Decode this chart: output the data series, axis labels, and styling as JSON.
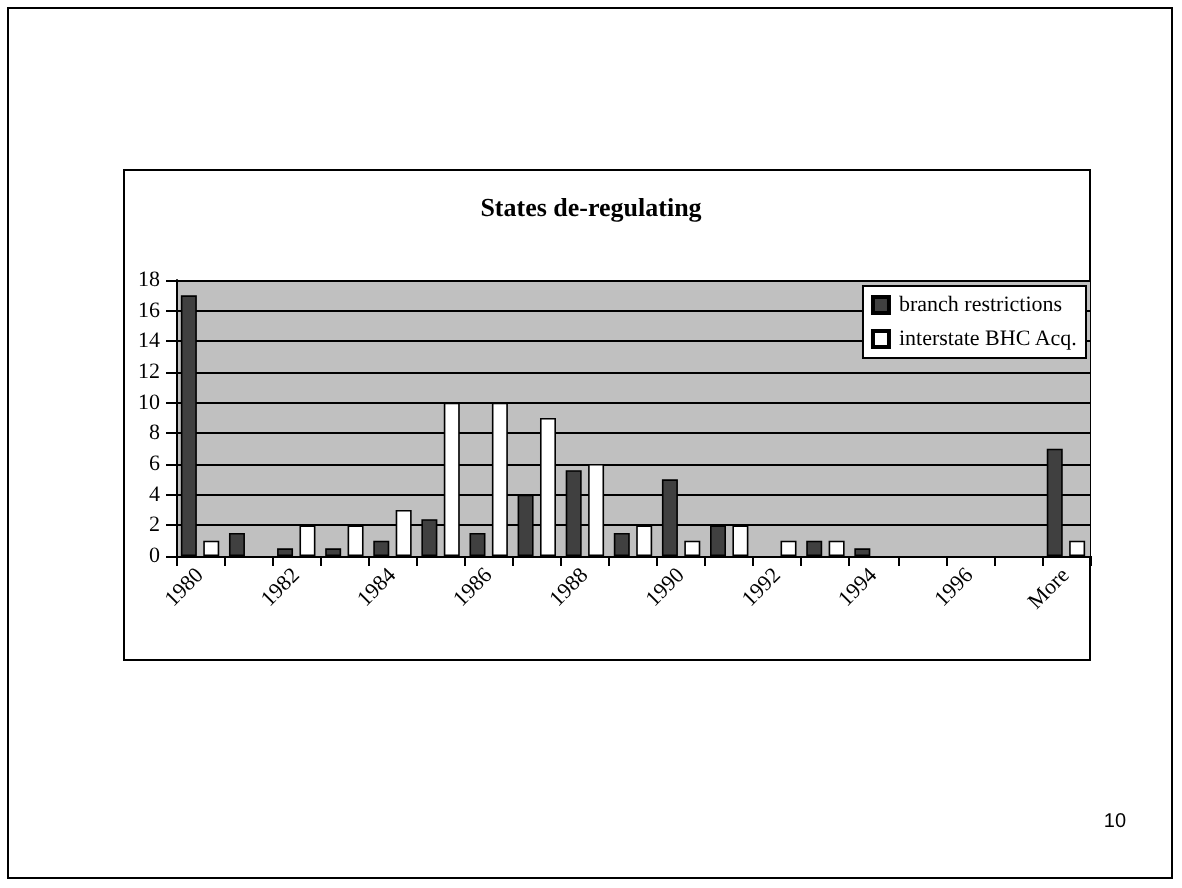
{
  "chart_data": {
    "type": "bar",
    "title": "States de-regulating",
    "categories": [
      "1980",
      null,
      "1982",
      null,
      "1984",
      null,
      "1986",
      null,
      "1988",
      null,
      "1990",
      null,
      "1992",
      null,
      "1994",
      null,
      "1996",
      null,
      "More"
    ],
    "series": [
      {
        "name": "branch restrictions",
        "color": "#404040",
        "values": [
          17,
          1.5,
          0.5,
          0.5,
          1,
          2.4,
          1.5,
          4,
          5.6,
          1.5,
          5,
          2,
          0,
          1,
          0.5,
          0,
          0,
          0,
          7
        ]
      },
      {
        "name": "interstate BHC Acq.",
        "color": "#ffffff",
        "values": [
          1,
          0,
          2,
          2,
          3,
          10,
          10,
          9,
          6,
          2,
          1,
          2,
          1,
          1,
          0,
          0,
          0,
          0,
          1
        ]
      }
    ],
    "ylim": [
      0,
      18
    ],
    "yticks": [
      0,
      2,
      4,
      6,
      8,
      10,
      12,
      14,
      16,
      18
    ],
    "grid": "y",
    "legend": "top right",
    "annotations": [
      "10"
    ]
  }
}
